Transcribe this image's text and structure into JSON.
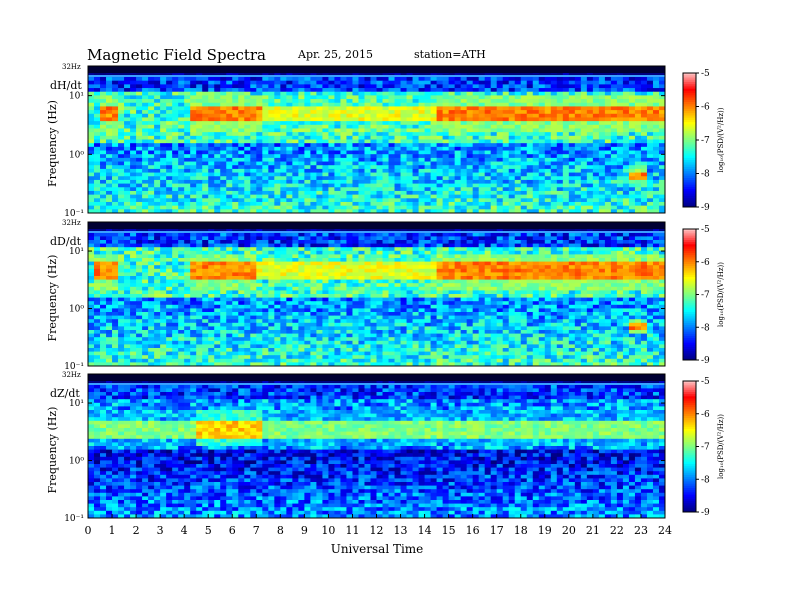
{
  "header": {
    "title": "Magnetic  Field  Spectra",
    "date": "Apr. 25, 2015",
    "station": "station=ATH"
  },
  "chart_data": {
    "type": "heatmap",
    "title": "Magnetic  Field  Spectra",
    "xlabel": "Universal Time",
    "x_ticks": [
      "0",
      "1",
      "2",
      "3",
      "4",
      "5",
      "6",
      "7",
      "8",
      "9",
      "10",
      "11",
      "12",
      "13",
      "14",
      "15",
      "16",
      "17",
      "18",
      "19",
      "20",
      "21",
      "22",
      "23",
      "24"
    ],
    "xlim": [
      0,
      24
    ],
    "panels": [
      {
        "component": "dH/dt",
        "ylabel": "Frequency  (Hz)",
        "y_top_label": "32Hz",
        "y_ticks": [
          "10¹",
          "10⁰",
          "10⁻¹"
        ],
        "scale": "log",
        "colorbar": {
          "ticks": [
            "-5",
            "-6",
            "-7",
            "-8",
            "-9"
          ],
          "label": "log₁₀(PSD/(V²/Hz))",
          "range": [
            -9,
            -5
          ]
        },
        "features": [
          {
            "name": "strong band",
            "freq_hz": 5.0,
            "level": -6.0,
            "spans": [
              [
                0.5,
                1.3
              ],
              [
                4.3,
                7.2
              ],
              [
                14.5,
                24.0
              ]
            ]
          },
          {
            "name": "moderate band",
            "freq_hz": 5.0,
            "level": -6.6,
            "spans": [
              [
                7.2,
                14.5
              ]
            ]
          },
          {
            "name": "narrow tone",
            "freq_hz": 0.45,
            "level": -6.0,
            "spans": [
              [
                22.5,
                23.2
              ]
            ]
          }
        ]
      },
      {
        "component": "dD/dt",
        "ylabel": "Frequency  (Hz)",
        "y_top_label": "32Hz",
        "y_ticks": [
          "10¹",
          "10⁰",
          "10⁻¹"
        ],
        "scale": "log",
        "colorbar": {
          "ticks": [
            "-5",
            "-6",
            "-7",
            "-8",
            "-9"
          ],
          "label": "log₁₀(PSD/(V²/Hz))",
          "range": [
            -9,
            -5
          ]
        },
        "features": [
          {
            "name": "strong band",
            "freq_hz": 4.5,
            "level": -6.0,
            "spans": [
              [
                0.3,
                1.3
              ],
              [
                4.3,
                7.0
              ],
              [
                14.5,
                24.0
              ]
            ]
          },
          {
            "name": "moderate band",
            "freq_hz": 4.5,
            "level": -6.6,
            "spans": [
              [
                7.0,
                14.5
              ]
            ]
          },
          {
            "name": "narrow tone",
            "freq_hz": 0.5,
            "level": -6.0,
            "spans": [
              [
                22.6,
                23.2
              ]
            ]
          }
        ]
      },
      {
        "component": "dZ/dt",
        "ylabel": "Frequency  (Hz)",
        "y_top_label": "32Hz",
        "y_ticks": [
          "10¹",
          "10⁰",
          "10⁻¹"
        ],
        "scale": "log",
        "colorbar": {
          "ticks": [
            "-5",
            "-6",
            "-7",
            "-8",
            "-9"
          ],
          "label": "log₁₀(PSD/(V²/Hz))",
          "range": [
            -9,
            -5
          ]
        },
        "features": [
          {
            "name": "strong band",
            "freq_hz": 3.5,
            "level": -6.3,
            "spans": [
              [
                4.5,
                7.3
              ]
            ]
          },
          {
            "name": "moderate band",
            "freq_hz": 3.5,
            "level": -7.0,
            "spans": [
              [
                0.0,
                4.5
              ],
              [
                7.3,
                24.0
              ]
            ]
          }
        ]
      }
    ]
  },
  "colors": {
    "colormap": [
      "#00007f",
      "#0000ff",
      "#007fff",
      "#00ffff",
      "#7fff7f",
      "#ffff00",
      "#ff7f00",
      "#ff0000",
      "#ffc8c8"
    ],
    "saturated_top": "#000033"
  }
}
